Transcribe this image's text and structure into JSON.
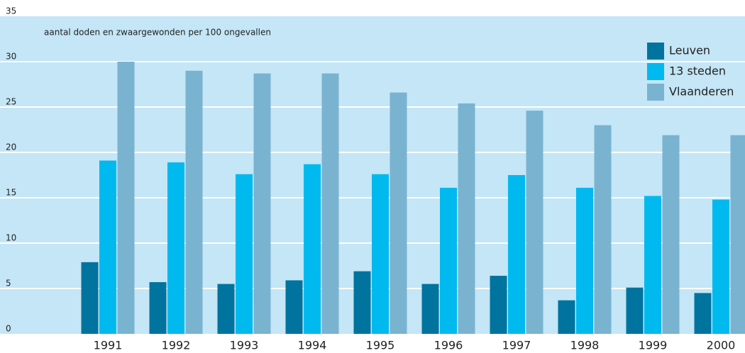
{
  "chart_data": {
    "type": "bar",
    "annotation": "aantal doden en zwaargewonden per 100 ongevallen",
    "categories": [
      "1991",
      "1992",
      "1993",
      "1994",
      "1995",
      "1996",
      "1997",
      "1998",
      "1999",
      "2000"
    ],
    "series": [
      {
        "name": "Leuven",
        "color": "#00739e",
        "values": [
          7.9,
          5.7,
          5.5,
          5.9,
          6.9,
          5.5,
          6.4,
          3.7,
          5.1,
          4.5
        ]
      },
      {
        "name": "13 steden",
        "color": "#00b9ee",
        "values": [
          19.1,
          18.9,
          17.6,
          18.7,
          17.6,
          16.1,
          17.5,
          16.1,
          15.2,
          14.8
        ]
      },
      {
        "name": "Vlaanderen",
        "color": "#7ab3d0",
        "values": [
          30,
          29,
          28.7,
          28.7,
          26.6,
          25.4,
          24.6,
          23.0,
          21.9,
          21.9
        ]
      }
    ],
    "ylim": [
      0,
      35
    ],
    "yticks": [
      0,
      5,
      10,
      15,
      20,
      25,
      30,
      35
    ],
    "grid": true,
    "legend": "upper right"
  }
}
